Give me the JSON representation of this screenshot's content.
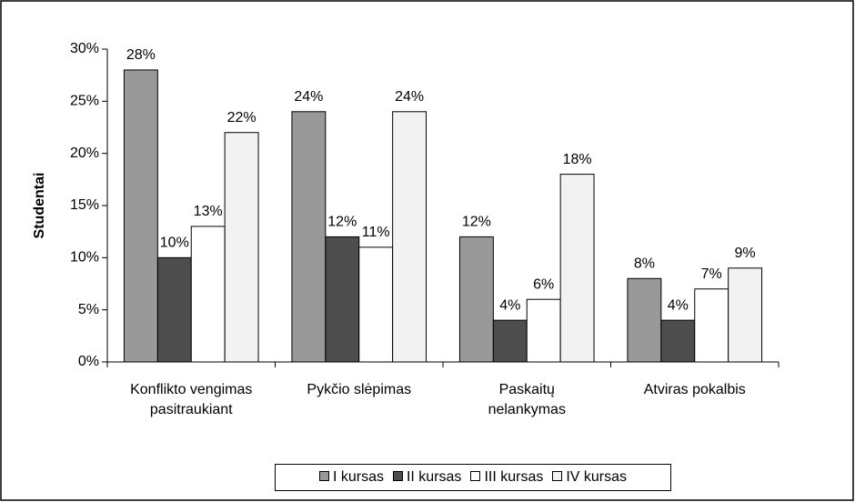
{
  "chart_data": {
    "type": "bar",
    "y_label": "Studentai",
    "categories": [
      "Konflikto vengimas\npasitraukiant",
      "Pykčio slėpimas",
      "Paskaitų\nnelankymas",
      "Atviras pokalbis"
    ],
    "series": [
      {
        "name": "I kursas",
        "color": "#999999",
        "values": [
          28,
          24,
          12,
          8
        ],
        "value_labels": [
          "28%",
          "24%",
          "12%",
          "8%"
        ]
      },
      {
        "name": "II kursas",
        "color": "#4d4d4d",
        "values": [
          10,
          12,
          4,
          4
        ],
        "value_labels": [
          "10%",
          "12%",
          "4%",
          "4%"
        ]
      },
      {
        "name": "III kursas",
        "color": "#ffffff",
        "values": [
          13,
          11,
          6,
          7
        ],
        "value_labels": [
          "13%",
          "11%",
          "6%",
          "7%"
        ]
      },
      {
        "name": "IV kursas",
        "color": "#f2f2f2",
        "values": [
          22,
          24,
          18,
          9
        ],
        "value_labels": [
          "22%",
          "24%",
          "18%",
          "9%"
        ]
      }
    ],
    "ylim": [
      0,
      30
    ],
    "yticks": [
      {
        "value": 0,
        "label": "0%"
      },
      {
        "value": 5,
        "label": "5%"
      },
      {
        "value": 10,
        "label": "10%"
      },
      {
        "value": 15,
        "label": "15%"
      },
      {
        "value": 20,
        "label": "20%"
      },
      {
        "value": 25,
        "label": "25%"
      },
      {
        "value": 30,
        "label": "30%"
      }
    ],
    "legend": "bottom"
  }
}
